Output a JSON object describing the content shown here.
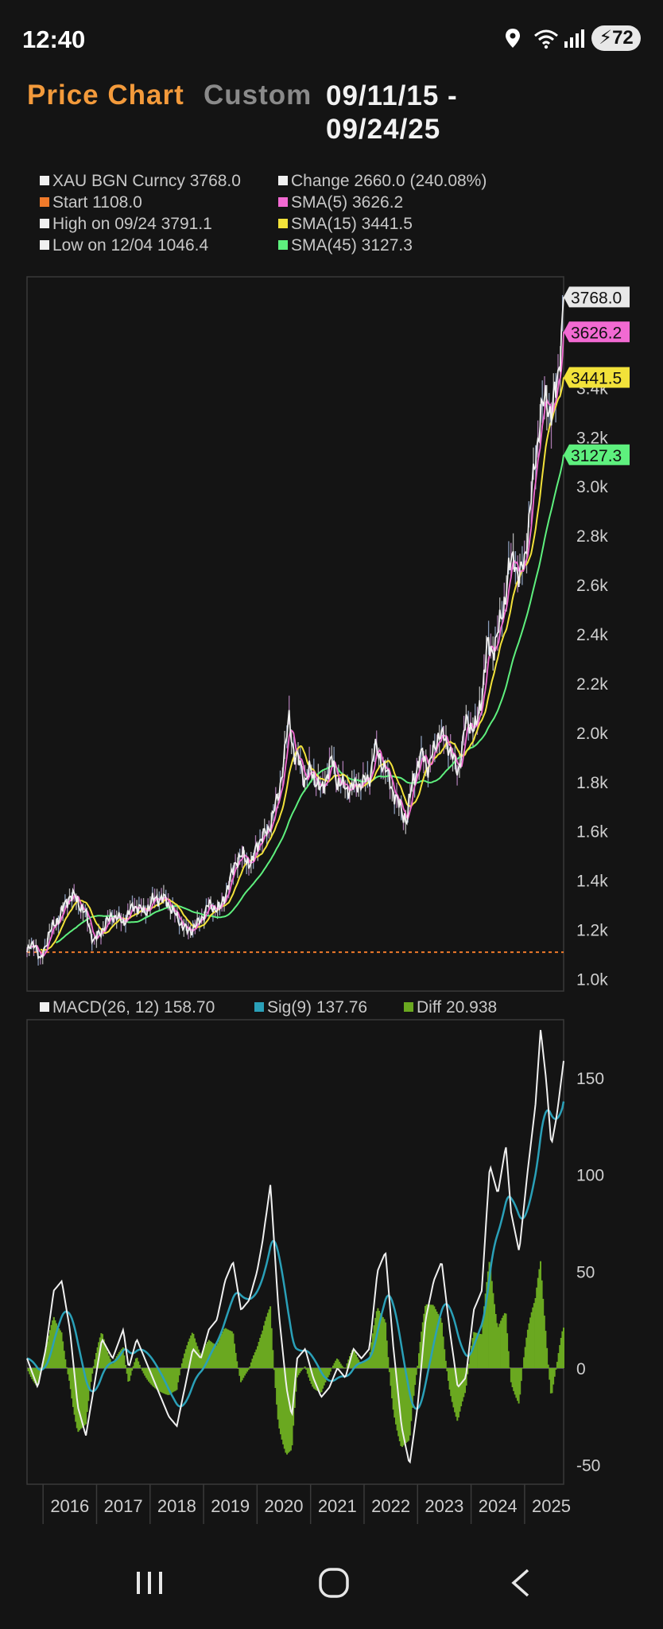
{
  "status": {
    "time": "12:40",
    "battery": "72"
  },
  "header": {
    "title": "Price Chart",
    "range_mode": "Custom",
    "date_range_line1": "09/11/15 -",
    "date_range_line2": "09/24/25"
  },
  "legend": {
    "ticker": "XAU BGN Curncy 3768.0",
    "start": "Start 1108.0",
    "high": "High on 09/24 3791.1",
    "low": "Low on 12/04 1046.4",
    "change": "Change 2660.0 (240.08%)",
    "sma5": "SMA(5) 3626.2",
    "sma15": "SMA(15) 3441.5",
    "sma45": "SMA(45) 3127.3"
  },
  "macd_legend": {
    "macd": "MACD(26, 12) 158.70",
    "sig": "Sig(9) 137.76",
    "diff": "Diff 20.938"
  },
  "colors": {
    "price": "#f0f0f0",
    "start": "#f07a2a",
    "sma5": "#f26ad2",
    "sma15": "#f2e23a",
    "sma45": "#5ef07e",
    "macd": "#f0f0f0",
    "sig": "#2aa0b8",
    "diff": "#6aa820"
  },
  "chart_data": [
    {
      "type": "line",
      "title": "",
      "x_unit": "year",
      "ylim": [
        950,
        3850
      ],
      "yticks": [
        1000,
        1200,
        1400,
        1600,
        1800,
        2000,
        2200,
        2400,
        2600,
        2800,
        3000,
        3200,
        3400
      ],
      "ytick_labels": [
        "1.0k",
        "1.2k",
        "1.4k",
        "1.6k",
        "1.8k",
        "2.0k",
        "2.2k",
        "2.4k",
        "2.6k",
        "2.8k",
        "3.0k",
        "3.2k",
        "3.4k"
      ],
      "xlim": [
        2015.7,
        2025.73
      ],
      "start_line": 1108,
      "series": [
        {
          "name": "XAU BGN Curncy",
          "last_label": "3768.0",
          "x": [
            2015.7,
            2015.85,
            2015.95,
            2016.1,
            2016.3,
            2016.5,
            2016.6,
            2016.8,
            2016.95,
            2017.1,
            2017.3,
            2017.5,
            2017.7,
            2017.9,
            2018.1,
            2018.3,
            2018.5,
            2018.7,
            2018.9,
            2019.1,
            2019.3,
            2019.5,
            2019.6,
            2019.75,
            2019.9,
            2020.0,
            2020.2,
            2020.4,
            2020.55,
            2020.6,
            2020.7,
            2020.8,
            2020.9,
            2021.0,
            2021.2,
            2021.4,
            2021.5,
            2021.7,
            2021.9,
            2022.1,
            2022.2,
            2022.4,
            2022.6,
            2022.8,
            2022.9,
            2023.1,
            2023.2,
            2023.4,
            2023.6,
            2023.75,
            2023.9,
            2024.1,
            2024.2,
            2024.3,
            2024.4,
            2024.5,
            2024.6,
            2024.7,
            2024.8,
            2024.9,
            2025.0,
            2025.1,
            2025.2,
            2025.3,
            2025.4,
            2025.5,
            2025.6,
            2025.65,
            2025.73
          ],
          "values": [
            1108,
            1150,
            1065,
            1180,
            1250,
            1340,
            1330,
            1260,
            1150,
            1200,
            1260,
            1230,
            1300,
            1270,
            1330,
            1320,
            1250,
            1190,
            1225,
            1300,
            1280,
            1400,
            1480,
            1500,
            1460,
            1550,
            1600,
            1740,
            1970,
            2060,
            1900,
            1880,
            1800,
            1850,
            1760,
            1890,
            1800,
            1770,
            1790,
            1810,
            1940,
            1850,
            1730,
            1640,
            1800,
            1920,
            1850,
            2000,
            1940,
            1830,
            2040,
            2020,
            2150,
            2350,
            2330,
            2400,
            2500,
            2650,
            2720,
            2620,
            2700,
            2900,
            3100,
            3300,
            3350,
            3300,
            3400,
            3500,
            3768
          ]
        },
        {
          "name": "SMA(5)",
          "last_label": "3626.2",
          "values_note": ""
        },
        {
          "name": "SMA(15)",
          "last_label": "3441.5"
        },
        {
          "name": "SMA(45)",
          "last_label": "3127.3"
        }
      ]
    },
    {
      "type": "line",
      "title": "",
      "ylim": [
        -60,
        180
      ],
      "yticks": [
        -50,
        0,
        50,
        100,
        150
      ],
      "ytick_labels": [
        "-50",
        "0",
        "50",
        "100",
        "150"
      ],
      "xlim": [
        2015.7,
        2025.73
      ],
      "xticks": [
        2016,
        2017,
        2018,
        2019,
        2020,
        2021,
        2022,
        2023,
        2024,
        2025
      ],
      "xtick_labels": [
        "2016",
        "2017",
        "2018",
        "2019",
        "2020",
        "2021",
        "2022",
        "2023",
        "2024",
        "2025"
      ],
      "series": [
        {
          "name": "MACD(26, 12)",
          "x": [
            2015.7,
            2015.9,
            2016.05,
            2016.2,
            2016.35,
            2016.5,
            2016.65,
            2016.8,
            2016.95,
            2017.1,
            2017.3,
            2017.5,
            2017.6,
            2017.75,
            2017.9,
            2018.05,
            2018.2,
            2018.35,
            2018.5,
            2018.65,
            2018.8,
            2018.95,
            2019.1,
            2019.25,
            2019.4,
            2019.55,
            2019.7,
            2019.85,
            2020.0,
            2020.1,
            2020.25,
            2020.4,
            2020.55,
            2020.65,
            2020.75,
            2020.9,
            2021.05,
            2021.2,
            2021.35,
            2021.5,
            2021.65,
            2021.8,
            2021.95,
            2022.1,
            2022.25,
            2022.4,
            2022.55,
            2022.7,
            2022.85,
            2023.0,
            2023.15,
            2023.3,
            2023.45,
            2023.6,
            2023.75,
            2023.9,
            2024.05,
            2024.2,
            2024.35,
            2024.5,
            2024.65,
            2024.75,
            2024.9,
            2025.05,
            2025.2,
            2025.3,
            2025.4,
            2025.5,
            2025.6,
            2025.73
          ],
          "values": [
            5,
            -10,
            10,
            40,
            45,
            20,
            -20,
            -35,
            -10,
            15,
            5,
            20,
            0,
            15,
            5,
            -5,
            -15,
            -25,
            -30,
            -10,
            10,
            5,
            20,
            25,
            45,
            55,
            30,
            35,
            50,
            65,
            95,
            30,
            -10,
            -25,
            5,
            10,
            -5,
            -15,
            -10,
            0,
            -5,
            10,
            5,
            10,
            50,
            60,
            10,
            -30,
            -50,
            -20,
            25,
            45,
            55,
            20,
            -10,
            -5,
            30,
            40,
            105,
            90,
            115,
            80,
            60,
            100,
            135,
            175,
            150,
            115,
            130,
            158.7
          ]
        },
        {
          "name": "Sig(9)"
        },
        {
          "name": "Diff"
        }
      ]
    }
  ]
}
